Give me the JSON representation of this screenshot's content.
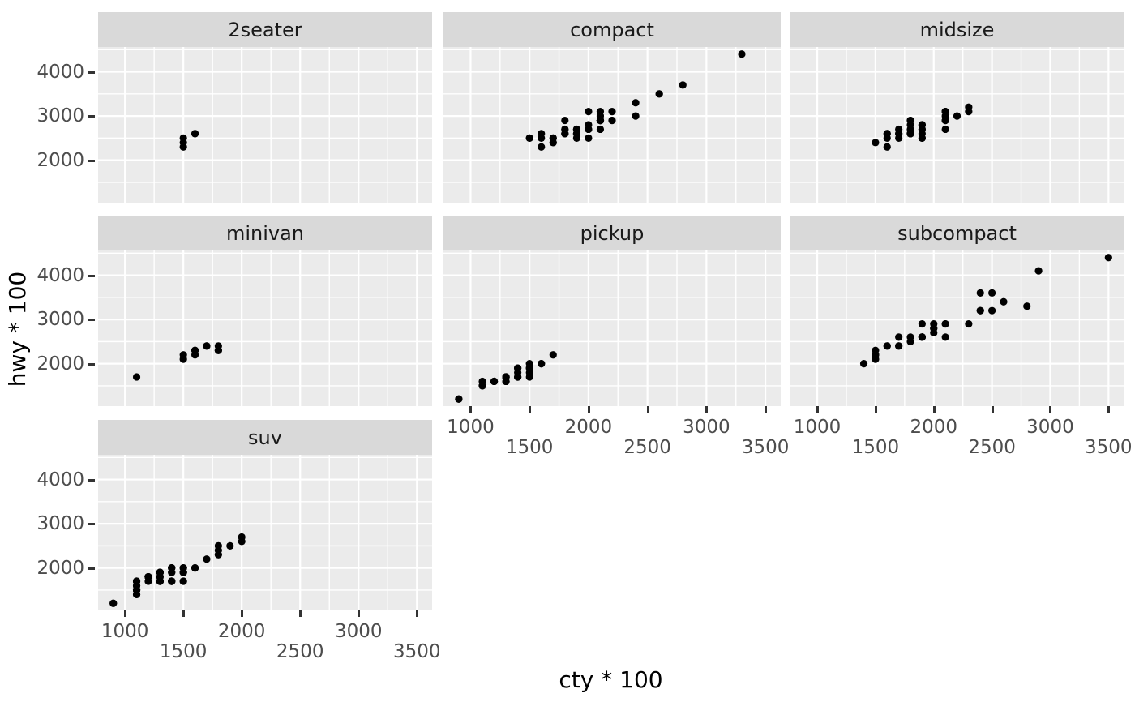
{
  "chart_data": {
    "type": "scatter",
    "title": "",
    "xlabel": "cty * 100",
    "ylabel": "hwy * 100",
    "xlim": [
      770,
      3630
    ],
    "ylim": [
      1040,
      4560
    ],
    "x_ticks": [
      1000,
      1500,
      2000,
      2500,
      3000,
      3500
    ],
    "x_tick_labels": [
      "1000",
      "1500",
      "2000",
      "2500",
      "3000",
      "3500"
    ],
    "x_label_dodge_rows": [
      [
        "1000",
        "2000",
        "3000"
      ],
      [
        "1500",
        "2500",
        "3500"
      ]
    ],
    "y_ticks": [
      2000,
      3000,
      4000
    ],
    "y_tick_labels": [
      "2000",
      "3000",
      "4000"
    ],
    "grid": true,
    "legend_position": "none",
    "colors": {
      "point": "#000000",
      "panel_bg": "#EBEBEB",
      "strip_bg": "#D9D9D9",
      "strip_text": "#1A1A1A",
      "grid_line": "#FFFFFF",
      "axis_text": "#4D4D4D",
      "axis_tick": "#333333",
      "axis_title": "#000000",
      "page_bg": "#FFFFFF"
    },
    "facets": [
      {
        "label": "2seater",
        "points": [
          [
            1600,
            2600
          ],
          [
            1500,
            2300
          ],
          [
            1600,
            2600
          ],
          [
            1500,
            2500
          ],
          [
            1500,
            2400
          ]
        ]
      },
      {
        "label": "compact",
        "points": [
          [
            1800,
            2900
          ],
          [
            2100,
            2900
          ],
          [
            2000,
            3100
          ],
          [
            2100,
            3000
          ],
          [
            1600,
            2600
          ],
          [
            1800,
            2600
          ],
          [
            1800,
            2700
          ],
          [
            1800,
            2600
          ],
          [
            1600,
            2500
          ],
          [
            2000,
            2800
          ],
          [
            1900,
            2700
          ],
          [
            1500,
            2500
          ],
          [
            1700,
            2500
          ],
          [
            1700,
            2500
          ],
          [
            1500,
            2500
          ],
          [
            2100,
            2900
          ],
          [
            1900,
            2700
          ],
          [
            2000,
            2500
          ],
          [
            2000,
            2700
          ],
          [
            1900,
            2500
          ],
          [
            2000,
            2700
          ],
          [
            2100,
            2700
          ],
          [
            2100,
            2900
          ],
          [
            2100,
            3100
          ],
          [
            2200,
            3100
          ],
          [
            1800,
            2600
          ],
          [
            1800,
            2700
          ],
          [
            2400,
            3000
          ],
          [
            2400,
            3300
          ],
          [
            2600,
            3500
          ],
          [
            2800,
            3700
          ],
          [
            2600,
            3500
          ],
          [
            2100,
            2900
          ],
          [
            1900,
            2600
          ],
          [
            2100,
            2900
          ],
          [
            2200,
            2900
          ],
          [
            1700,
            2400
          ],
          [
            3300,
            4400
          ],
          [
            2100,
            2900
          ],
          [
            1900,
            2600
          ],
          [
            2200,
            2900
          ],
          [
            2100,
            2900
          ],
          [
            2100,
            2900
          ],
          [
            2100,
            2900
          ],
          [
            1600,
            2300
          ],
          [
            1700,
            2400
          ]
        ]
      },
      {
        "label": "midsize",
        "points": [
          [
            1500,
            2400
          ],
          [
            1700,
            2500
          ],
          [
            1600,
            2300
          ],
          [
            1900,
            2700
          ],
          [
            2200,
            3000
          ],
          [
            1800,
            2600
          ],
          [
            1800,
            2900
          ],
          [
            1700,
            2600
          ],
          [
            1800,
            2600
          ],
          [
            1800,
            2700
          ],
          [
            2100,
            3000
          ],
          [
            2100,
            3100
          ],
          [
            1800,
            2600
          ],
          [
            1800,
            2600
          ],
          [
            1900,
            2800
          ],
          [
            2300,
            3100
          ],
          [
            2300,
            3200
          ],
          [
            1900,
            2700
          ],
          [
            1900,
            2600
          ],
          [
            1800,
            2600
          ],
          [
            1900,
            2500
          ],
          [
            1900,
            2500
          ],
          [
            1800,
            2600
          ],
          [
            1600,
            2600
          ],
          [
            1700,
            2700
          ],
          [
            1800,
            2800
          ],
          [
            1600,
            2500
          ],
          [
            2100,
            2900
          ],
          [
            2100,
            2700
          ],
          [
            2100,
            3100
          ],
          [
            2100,
            3100
          ],
          [
            1800,
            2600
          ],
          [
            1800,
            2600
          ],
          [
            1900,
            2800
          ],
          [
            2100,
            2900
          ],
          [
            1800,
            2900
          ],
          [
            1900,
            2800
          ],
          [
            2100,
            2900
          ],
          [
            1600,
            2600
          ],
          [
            1800,
            2600
          ],
          [
            1700,
            2600
          ]
        ]
      },
      {
        "label": "minivan",
        "points": [
          [
            1800,
            2400
          ],
          [
            1700,
            2400
          ],
          [
            1600,
            2200
          ],
          [
            1700,
            2400
          ],
          [
            1100,
            1700
          ],
          [
            1500,
            2200
          ],
          [
            1500,
            2100
          ],
          [
            1600,
            2300
          ],
          [
            1600,
            2300
          ],
          [
            1800,
            2300
          ],
          [
            1800,
            2300
          ]
        ]
      },
      {
        "label": "pickup",
        "points": [
          [
            1500,
            1900
          ],
          [
            1400,
            1800
          ],
          [
            1300,
            1700
          ],
          [
            1400,
            1700
          ],
          [
            1400,
            1900
          ],
          [
            1400,
            1900
          ],
          [
            900,
            1200
          ],
          [
            1200,
            1600
          ],
          [
            900,
            1200
          ],
          [
            1300,
            1700
          ],
          [
            1300,
            1700
          ],
          [
            1200,
            1600
          ],
          [
            1100,
            1600
          ],
          [
            1100,
            1500
          ],
          [
            1300,
            1700
          ],
          [
            1100,
            1500
          ],
          [
            1200,
            1600
          ],
          [
            1400,
            1700
          ],
          [
            1400,
            1700
          ],
          [
            1300,
            1600
          ],
          [
            1300,
            1600
          ],
          [
            1300,
            1700
          ],
          [
            1100,
            1500
          ],
          [
            1300,
            1700
          ],
          [
            1500,
            2000
          ],
          [
            1600,
            2000
          ],
          [
            1700,
            2200
          ],
          [
            1500,
            1700
          ],
          [
            1500,
            1900
          ],
          [
            1500,
            1800
          ],
          [
            1600,
            2000
          ]
        ]
      },
      {
        "label": "subcompact",
        "points": [
          [
            1800,
            2600
          ],
          [
            1800,
            2500
          ],
          [
            1700,
            2600
          ],
          [
            1600,
            2400
          ],
          [
            1500,
            2100
          ],
          [
            1500,
            2200
          ],
          [
            1500,
            2300
          ],
          [
            1500,
            2200
          ],
          [
            1400,
            2000
          ],
          [
            2800,
            3300
          ],
          [
            2400,
            3200
          ],
          [
            2500,
            3200
          ],
          [
            2300,
            2900
          ],
          [
            2400,
            3200
          ],
          [
            2600,
            3400
          ],
          [
            2500,
            3600
          ],
          [
            2400,
            3600
          ],
          [
            2100,
            2900
          ],
          [
            1900,
            2600
          ],
          [
            1900,
            2900
          ],
          [
            2000,
            2800
          ],
          [
            2000,
            2700
          ],
          [
            1700,
            2400
          ],
          [
            1600,
            2400
          ],
          [
            1700,
            2400
          ],
          [
            2100,
            2600
          ],
          [
            1900,
            2600
          ],
          [
            1900,
            2600
          ],
          [
            1900,
            2600
          ],
          [
            3500,
            4400
          ],
          [
            2900,
            4100
          ],
          [
            2100,
            2900
          ],
          [
            1900,
            2600
          ],
          [
            2000,
            2800
          ],
          [
            2000,
            2900
          ]
        ]
      },
      {
        "label": "suv",
        "points": [
          [
            1400,
            2000
          ],
          [
            1100,
            1500
          ],
          [
            1400,
            2000
          ],
          [
            1300,
            1700
          ],
          [
            1200,
            1700
          ],
          [
            1400,
            1900
          ],
          [
            1100,
            1400
          ],
          [
            1100,
            1500
          ],
          [
            1400,
            1700
          ],
          [
            1300,
            1700
          ],
          [
            1300,
            1700
          ],
          [
            900,
            1200
          ],
          [
            1300,
            1700
          ],
          [
            1100,
            1600
          ],
          [
            1100,
            1500
          ],
          [
            1100,
            1700
          ],
          [
            1100,
            1700
          ],
          [
            1200,
            1800
          ],
          [
            1400,
            1700
          ],
          [
            1500,
            1900
          ],
          [
            1400,
            1700
          ],
          [
            1300,
            1900
          ],
          [
            1300,
            1900
          ],
          [
            1700,
            2200
          ],
          [
            1500,
            1900
          ],
          [
            1500,
            2000
          ],
          [
            1400,
            1700
          ],
          [
            900,
            1200
          ],
          [
            1400,
            1900
          ],
          [
            1300,
            1800
          ],
          [
            1100,
            1400
          ],
          [
            1100,
            1500
          ],
          [
            1200,
            1800
          ],
          [
            1200,
            1800
          ],
          [
            1100,
            1500
          ],
          [
            1100,
            1700
          ],
          [
            1100,
            1600
          ],
          [
            1200,
            1800
          ],
          [
            1400,
            1700
          ],
          [
            1300,
            1900
          ],
          [
            1300,
            1900
          ],
          [
            1300,
            1700
          ],
          [
            1400,
            1700
          ],
          [
            1500,
            1700
          ],
          [
            1400,
            2000
          ],
          [
            1200,
            1800
          ],
          [
            1800,
            2500
          ],
          [
            1800,
            2400
          ],
          [
            2000,
            2700
          ],
          [
            1900,
            2500
          ],
          [
            2000,
            2600
          ],
          [
            1800,
            2300
          ],
          [
            1500,
            2000
          ],
          [
            1600,
            2000
          ],
          [
            1500,
            1900
          ],
          [
            1500,
            1700
          ],
          [
            1600,
            2000
          ],
          [
            1400,
            1700
          ],
          [
            1100,
            1500
          ],
          [
            1300,
            1800
          ]
        ]
      }
    ]
  }
}
